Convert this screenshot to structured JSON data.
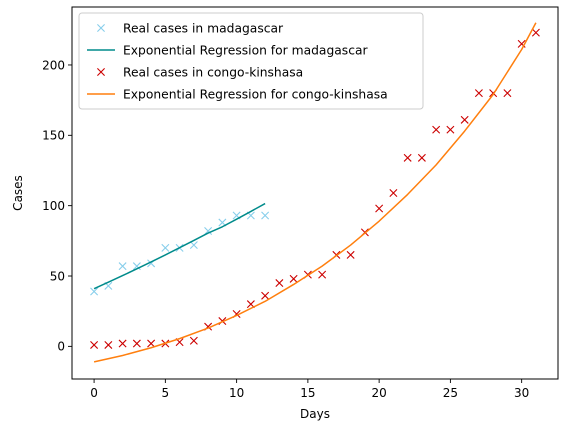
{
  "chart_data": {
    "type": "scatter",
    "xlabel": "Days",
    "ylabel": "Cases",
    "xlim": [
      -1.55,
      32.55
    ],
    "ylim": [
      -23.2,
      241.2
    ],
    "xticks": [
      0,
      5,
      10,
      15,
      20,
      25,
      30
    ],
    "yticks": [
      0,
      50,
      100,
      150,
      200
    ],
    "grid": false,
    "legend_position": "top-left",
    "series": [
      {
        "name": "Real cases in madagascar",
        "kind": "points",
        "marker": "x",
        "color": "#87ceeb",
        "x": [
          0,
          1,
          2,
          3,
          4,
          5,
          6,
          7,
          8,
          9,
          10,
          11,
          12
        ],
        "y": [
          39,
          43,
          57,
          57,
          59,
          70,
          70,
          72,
          82,
          88,
          93,
          93,
          93
        ]
      },
      {
        "name": "Exponential Regression for madagascar",
        "kind": "line",
        "color": "#008b8b",
        "x": [
          0,
          1,
          2,
          3,
          4,
          5,
          6,
          7,
          8,
          9,
          10,
          11,
          12
        ],
        "y": [
          41,
          45.6,
          50.3,
          55.1,
          60,
          65,
          70.1,
          75.3,
          80.5,
          85,
          90.4,
          95.9,
          101.5
        ]
      },
      {
        "name": "Real cases in congo-kinshasa",
        "kind": "points",
        "marker": "x",
        "color": "#cc0000",
        "x": [
          0,
          1,
          2,
          3,
          4,
          5,
          6,
          7,
          8,
          9,
          10,
          11,
          12,
          13,
          14,
          15,
          16,
          17,
          18,
          19,
          20,
          21,
          22,
          23,
          24,
          25,
          26,
          27,
          28,
          29,
          30,
          31
        ],
        "y": [
          1,
          1,
          2,
          2,
          2,
          2,
          3,
          4,
          14,
          18,
          23,
          30,
          36,
          45,
          48,
          51,
          51,
          65,
          65,
          81,
          98,
          109,
          134,
          134,
          154,
          154,
          161,
          180,
          180,
          180,
          215,
          223
        ]
      },
      {
        "name": "Exponential Regression for congo-kinshasa",
        "kind": "line",
        "color": "#ff7f0e",
        "x": [
          0,
          2,
          4,
          6,
          8,
          10,
          12,
          14,
          16,
          18,
          20,
          22,
          24,
          26,
          28,
          30,
          31
        ],
        "y": [
          -11,
          -6.5,
          -1,
          5.5,
          13,
          22,
          32,
          44,
          57,
          72,
          89,
          108,
          129,
          153,
          179,
          211,
          230
        ]
      }
    ]
  }
}
